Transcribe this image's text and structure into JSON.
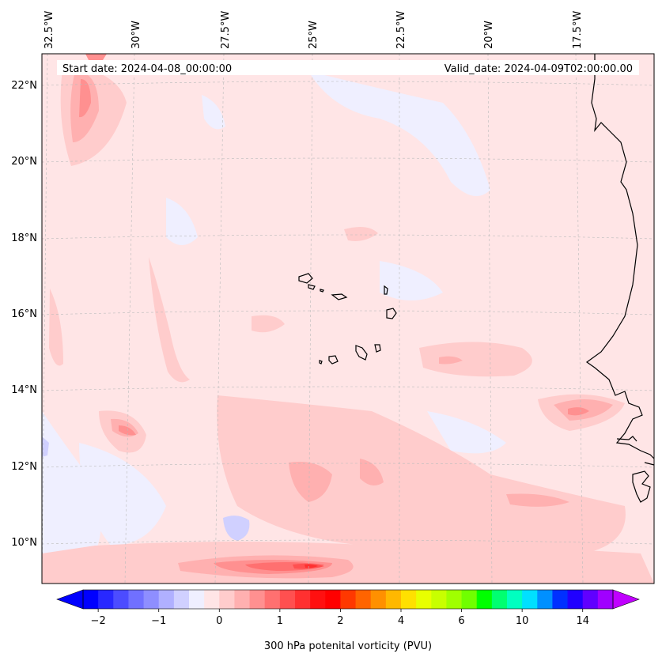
{
  "map": {
    "start_date": "Start date: 2024-04-08_00:00:00",
    "valid_date": "Valid_date: 2024-04-09T02:00:00.00",
    "longitude_labels": [
      "32.5°W",
      "30°W",
      "27.5°W",
      "25°W",
      "22.5°W",
      "20°W",
      "17.5°W"
    ],
    "latitude_labels": [
      "22°N",
      "20°N",
      "18°N",
      "16°N",
      "14°N",
      "12°N",
      "10°N"
    ],
    "background_color": "#ffe5e6",
    "coast_color": "#000000"
  },
  "colorbar": {
    "label": "300 hPa potenital vorticity (PVU)",
    "tick_labels": [
      "−2",
      "−1",
      "0",
      "1",
      "2",
      "4",
      "6",
      "10",
      "14"
    ],
    "colors": [
      "#0000ff",
      "#2828ff",
      "#4c4cff",
      "#7070ff",
      "#8e8eff",
      "#b0b0ff",
      "#d0d0ff",
      "#efefff",
      "#ffe5e6",
      "#ffcccc",
      "#ffb0b0",
      "#ff9090",
      "#ff7070",
      "#ff5050",
      "#ff3030",
      "#ff1010",
      "#ff0000",
      "#ff3800",
      "#ff6400",
      "#ff9000",
      "#ffb800",
      "#ffe000",
      "#e8ff00",
      "#c8ff00",
      "#a0ff00",
      "#70ff00",
      "#00ff00",
      "#00ff70",
      "#00ffc0",
      "#00e0ff",
      "#0090ff",
      "#0030ff",
      "#2000ff",
      "#6000ff",
      "#a000ff"
    ],
    "under_color": "#0000ff",
    "over_color": "#c000ff"
  }
}
